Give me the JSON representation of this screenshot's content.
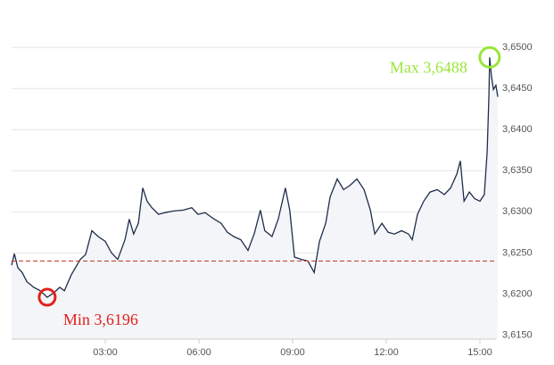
{
  "chart_data": {
    "type": "line",
    "x": [
      0,
      0.09,
      0.2,
      0.34,
      0.49,
      0.71,
      0.91,
      1.14,
      1.34,
      1.54,
      1.69,
      1.91,
      2.2,
      2.37,
      2.57,
      2.77,
      3,
      3.2,
      3.4,
      3.63,
      3.77,
      3.91,
      4.06,
      4.2,
      4.34,
      4.49,
      4.71,
      4.91,
      5.2,
      5.49,
      5.77,
      5.97,
      6.2,
      6.49,
      6.71,
      6.91,
      7.11,
      7.34,
      7.57,
      7.77,
      7.97,
      8.11,
      8.34,
      8.54,
      8.77,
      8.91,
      9.06,
      9.29,
      9.49,
      9.69,
      9.86,
      10.06,
      10.2,
      10.43,
      10.63,
      10.83,
      11.06,
      11.29,
      11.49,
      11.63,
      11.86,
      12.06,
      12.26,
      12.49,
      12.71,
      12.83,
      13,
      13.2,
      13.4,
      13.63,
      13.86,
      14.06,
      14.26,
      14.37,
      14.49,
      14.66,
      14.83,
      15,
      15.14,
      15.23,
      15.29,
      15.31,
      15.37,
      15.43,
      15.51,
      15.57
    ],
    "series": [
      {
        "color": "#1f2d4a",
        "values": [
          3.6235,
          3.6249,
          3.6232,
          3.6226,
          3.6215,
          3.6208,
          3.6204,
          3.6196,
          3.6201,
          3.6208,
          3.6204,
          3.6223,
          3.6242,
          3.6248,
          3.6277,
          3.627,
          3.6264,
          3.625,
          3.6242,
          3.6266,
          3.6291,
          3.6273,
          3.6286,
          3.6329,
          3.6313,
          3.6305,
          3.6297,
          3.6299,
          3.6301,
          3.6302,
          3.6305,
          3.6297,
          3.6299,
          3.6291,
          3.6286,
          3.6275,
          3.627,
          3.6266,
          3.6253,
          3.6273,
          3.6302,
          3.6277,
          3.627,
          3.6291,
          3.6329,
          3.6302,
          3.6245,
          3.6242,
          3.624,
          3.6226,
          3.6264,
          3.6286,
          3.6318,
          3.634,
          3.6327,
          3.6332,
          3.634,
          3.6327,
          3.6302,
          3.6273,
          3.6286,
          3.6275,
          3.6273,
          3.6277,
          3.6273,
          3.6266,
          3.6297,
          3.6313,
          3.6324,
          3.6327,
          3.6321,
          3.6329,
          3.6346,
          3.6362,
          3.6313,
          3.6324,
          3.6316,
          3.6313,
          3.6321,
          3.6373,
          3.6443,
          3.6488,
          3.6465,
          3.6449,
          3.6454,
          3.644
        ]
      }
    ],
    "xlim": [
      0,
      15.6
    ],
    "xticks": [
      {
        "value": 3,
        "label": "03:00"
      },
      {
        "value": 6,
        "label": "06:00"
      },
      {
        "value": 9,
        "label": "09:00"
      },
      {
        "value": 12,
        "label": "12:00"
      },
      {
        "value": 15,
        "label": "15:00"
      }
    ],
    "ylim": [
      3.6145,
      3.6547
    ],
    "yticks": [
      {
        "value": 3.615,
        "label": "3,6150"
      },
      {
        "value": 3.62,
        "label": "3,6200"
      },
      {
        "value": 3.625,
        "label": "3,6250"
      },
      {
        "value": 3.63,
        "label": "3,6300"
      },
      {
        "value": 3.635,
        "label": "3,6350"
      },
      {
        "value": 3.64,
        "label": "3,6400"
      },
      {
        "value": 3.645,
        "label": "3,6450"
      },
      {
        "value": 3.65,
        "label": "3,6500"
      }
    ],
    "grid": true,
    "area_color": "#f3f5f8",
    "reference_line": {
      "value": 3.624,
      "color": "#c0392b"
    },
    "annotations": [
      {
        "text": "Max 3,6488",
        "x": 15.31,
        "value": 3.6488,
        "color": "#99e63c"
      },
      {
        "text": "Min 3,6196",
        "x": 1.14,
        "value": 3.6196,
        "color": "#e3201b"
      }
    ]
  }
}
